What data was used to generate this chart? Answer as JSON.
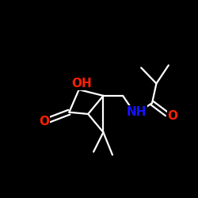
{
  "background_color": "#000000",
  "bond_color": "#ffffff",
  "bond_width": 1.6,
  "atom_colors": {
    "O": "#ff2000",
    "N": "#1414ff",
    "OH": "#ff2000"
  },
  "figsize": [
    2.5,
    2.5
  ],
  "dpi": 100,
  "font_size_large": 11,
  "font_size_small": 10,
  "font_weight": "bold"
}
